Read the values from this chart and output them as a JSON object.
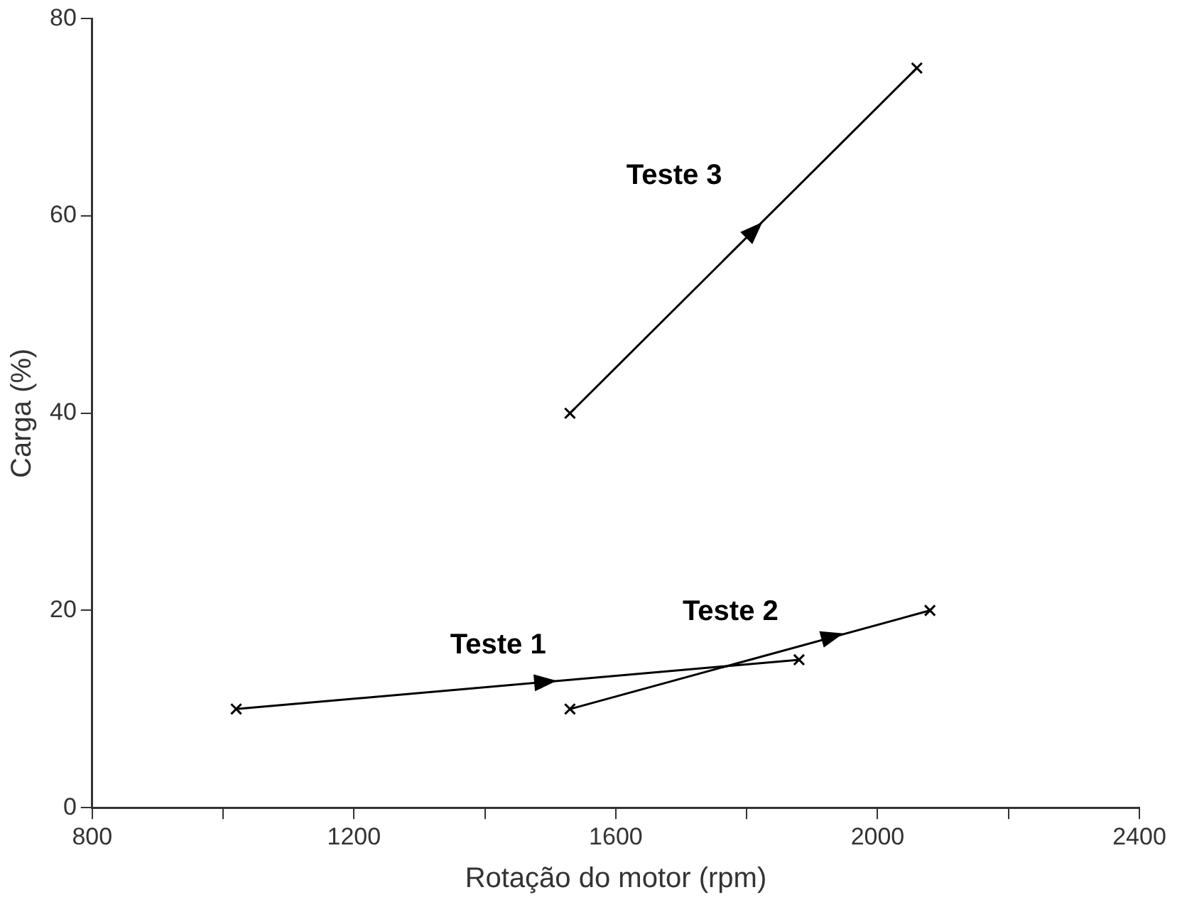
{
  "chart_data": {
    "type": "line",
    "xlabel": "Rotação do motor (rpm)",
    "ylabel": "Carga (%)",
    "xlim": [
      800,
      2400
    ],
    "xticks": [
      800,
      {
        "value": 1000,
        "label": null
      },
      1200,
      {
        "value": 1400,
        "label": null
      },
      1600,
      {
        "value": 1800,
        "label": null
      },
      2000,
      {
        "value": 2200,
        "label": null
      },
      2400
    ],
    "ylim": [
      0,
      80
    ],
    "yticks": [
      0,
      20,
      40,
      60,
      80
    ],
    "grid": false,
    "legend": false,
    "marker": "cross",
    "line_style": "solid",
    "series": [
      {
        "name": "Teste 1",
        "color": "#000000",
        "x": [
          1020,
          1880
        ],
        "values": [
          10,
          15
        ]
      },
      {
        "name": "Teste 2",
        "color": "#000000",
        "x": [
          1530,
          2080
        ],
        "values": [
          10,
          20
        ]
      },
      {
        "name": "Teste 3",
        "color": "#000000",
        "x": [
          1530,
          2060
        ],
        "values": [
          40,
          75
        ]
      }
    ]
  }
}
